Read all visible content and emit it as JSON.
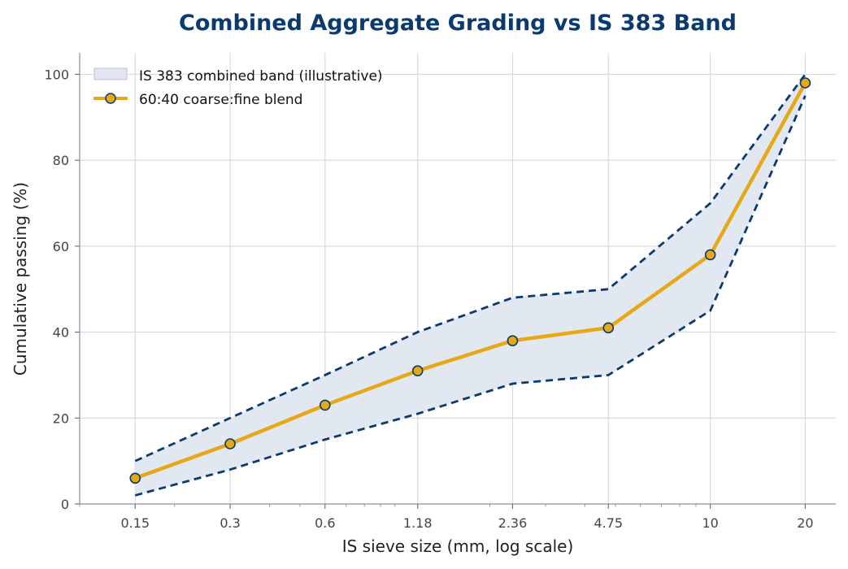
{
  "chart_data": {
    "type": "line",
    "title": "Combined Aggregate Grading vs IS 383 Band",
    "xlabel": "IS sieve size  (mm, log scale)",
    "ylabel": "Cumulative passing  (%)",
    "x_scale": "log",
    "x": [
      0.15,
      0.3,
      0.6,
      1.18,
      2.36,
      4.75,
      10,
      20
    ],
    "x_tick_labels": [
      "0.15",
      "0.3",
      "0.6",
      "1.18",
      "2.36",
      "4.75",
      "10",
      "20"
    ],
    "y_ticks": [
      0,
      20,
      40,
      60,
      80,
      100
    ],
    "ylim": [
      0,
      105
    ],
    "grid": true,
    "legend_position": "top-left",
    "band": {
      "name": "IS 383 combined band (illustrative)",
      "lower": [
        2,
        8,
        15,
        21,
        28,
        30,
        45,
        95
      ],
      "upper": [
        10,
        20,
        30,
        40,
        48,
        50,
        70,
        100
      ],
      "fill_color": "#dfe6ef",
      "edge_color": "#0b3a6e"
    },
    "series": [
      {
        "name": "60:40 coarse:fine blend",
        "values": [
          6,
          14,
          23,
          31,
          38,
          41,
          58,
          98
        ],
        "color": "#e6a817",
        "marker_edge": "#0b3a6e"
      }
    ]
  }
}
